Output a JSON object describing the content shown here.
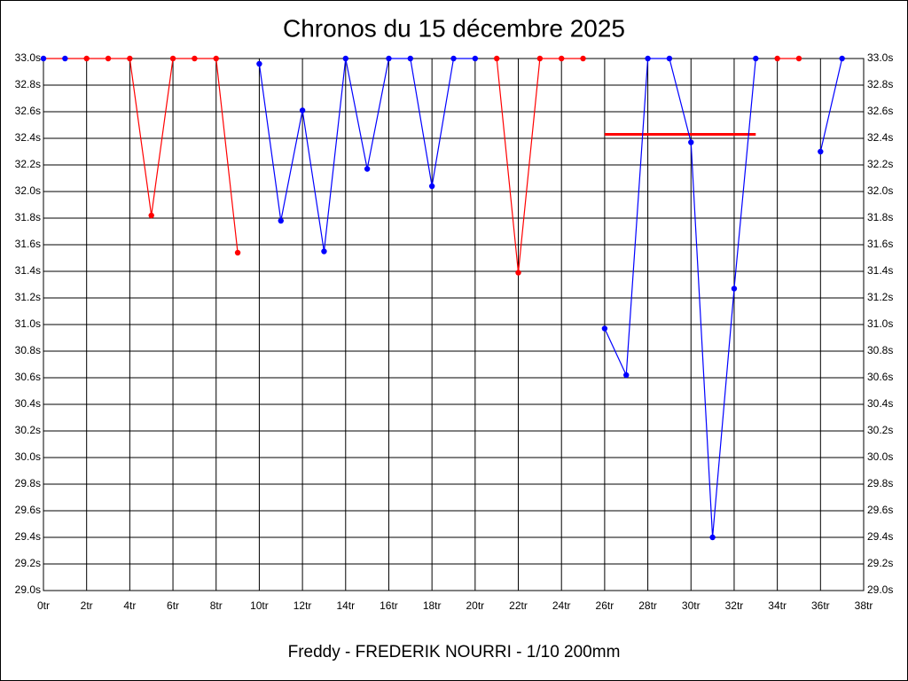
{
  "chart_data": {
    "type": "line",
    "title": "Chronos du 15 décembre 2025",
    "x_label": "Freddy - FREDERIK NOURRI - 1/10 200mm",
    "xlim": [
      0,
      38
    ],
    "ylim": [
      29.0,
      33.0
    ],
    "xticks": [
      {
        "value": 0,
        "label": "0tr"
      },
      {
        "value": 2,
        "label": "2tr"
      },
      {
        "value": 4,
        "label": "4tr"
      },
      {
        "value": 6,
        "label": "6tr"
      },
      {
        "value": 8,
        "label": "8tr"
      },
      {
        "value": 10,
        "label": "10tr"
      },
      {
        "value": 12,
        "label": "12tr"
      },
      {
        "value": 14,
        "label": "14tr"
      },
      {
        "value": 16,
        "label": "16tr"
      },
      {
        "value": 18,
        "label": "18tr"
      },
      {
        "value": 20,
        "label": "20tr"
      },
      {
        "value": 22,
        "label": "22tr"
      },
      {
        "value": 24,
        "label": "24tr"
      },
      {
        "value": 26,
        "label": "26tr"
      },
      {
        "value": 28,
        "label": "28tr"
      },
      {
        "value": 30,
        "label": "30tr"
      },
      {
        "value": 32,
        "label": "32tr"
      },
      {
        "value": 34,
        "label": "34tr"
      },
      {
        "value": 36,
        "label": "36tr"
      },
      {
        "value": 38,
        "label": "38tr"
      }
    ],
    "yticks": [
      {
        "value": 29.0,
        "label": "29.0s"
      },
      {
        "value": 29.2,
        "label": "29.2s"
      },
      {
        "value": 29.4,
        "label": "29.4s"
      },
      {
        "value": 29.6,
        "label": "29.6s"
      },
      {
        "value": 29.8,
        "label": "29.8s"
      },
      {
        "value": 30.0,
        "label": "30.0s"
      },
      {
        "value": 30.2,
        "label": "30.2s"
      },
      {
        "value": 30.4,
        "label": "30.4s"
      },
      {
        "value": 30.6,
        "label": "30.6s"
      },
      {
        "value": 30.8,
        "label": "30.8s"
      },
      {
        "value": 31.0,
        "label": "31.0s"
      },
      {
        "value": 31.2,
        "label": "31.2s"
      },
      {
        "value": 31.4,
        "label": "31.4s"
      },
      {
        "value": 31.6,
        "label": "31.6s"
      },
      {
        "value": 31.8,
        "label": "31.8s"
      },
      {
        "value": 32.0,
        "label": "32.0s"
      },
      {
        "value": 32.2,
        "label": "32.2s"
      },
      {
        "value": 32.4,
        "label": "32.4s"
      },
      {
        "value": 32.6,
        "label": "32.6s"
      },
      {
        "value": 32.8,
        "label": "32.8s"
      },
      {
        "value": 33.0,
        "label": "33.0s"
      }
    ],
    "grid": true,
    "series": [
      {
        "color": "#ff0000",
        "x": [
          0,
          1,
          2,
          3,
          4,
          5,
          6,
          7,
          8,
          9
        ],
        "values": [
          33.0,
          33.0,
          33.0,
          33.0,
          33.0,
          31.82,
          33.0,
          33.0,
          33.0,
          31.54
        ],
        "marker_colors": [
          "#0000ff",
          "#0000ff",
          "#ff0000",
          "#ff0000",
          "#ff0000",
          "#ff0000",
          "#ff0000",
          "#ff0000",
          "#ff0000",
          "#ff0000"
        ]
      },
      {
        "color": "#0000ff",
        "x": [
          10,
          11,
          12,
          13,
          14,
          15,
          16,
          17,
          18,
          19,
          20
        ],
        "values": [
          32.96,
          31.78,
          32.61,
          31.55,
          33.0,
          32.17,
          33.0,
          33.0,
          32.04,
          33.0,
          33.0
        ]
      },
      {
        "color": "#ff0000",
        "x": [
          21,
          22,
          23,
          24,
          25
        ],
        "values": [
          33.0,
          31.39,
          33.0,
          33.0,
          33.0
        ]
      },
      {
        "color": "#0000ff",
        "x": [
          26,
          27,
          28,
          29,
          30,
          31,
          32,
          33
        ],
        "values": [
          30.97,
          30.62,
          33.0,
          33.0,
          32.37,
          29.4,
          31.27,
          33.0
        ]
      },
      {
        "color": "#ff0000",
        "x": [
          34,
          35
        ],
        "values": [
          33.0,
          33.0
        ]
      },
      {
        "color": "#0000ff",
        "x": [
          36,
          37
        ],
        "values": [
          32.3,
          33.0
        ]
      }
    ],
    "hlines": [
      {
        "y": 32.43,
        "x": [
          26,
          33
        ],
        "color": "#ff0000"
      }
    ]
  }
}
